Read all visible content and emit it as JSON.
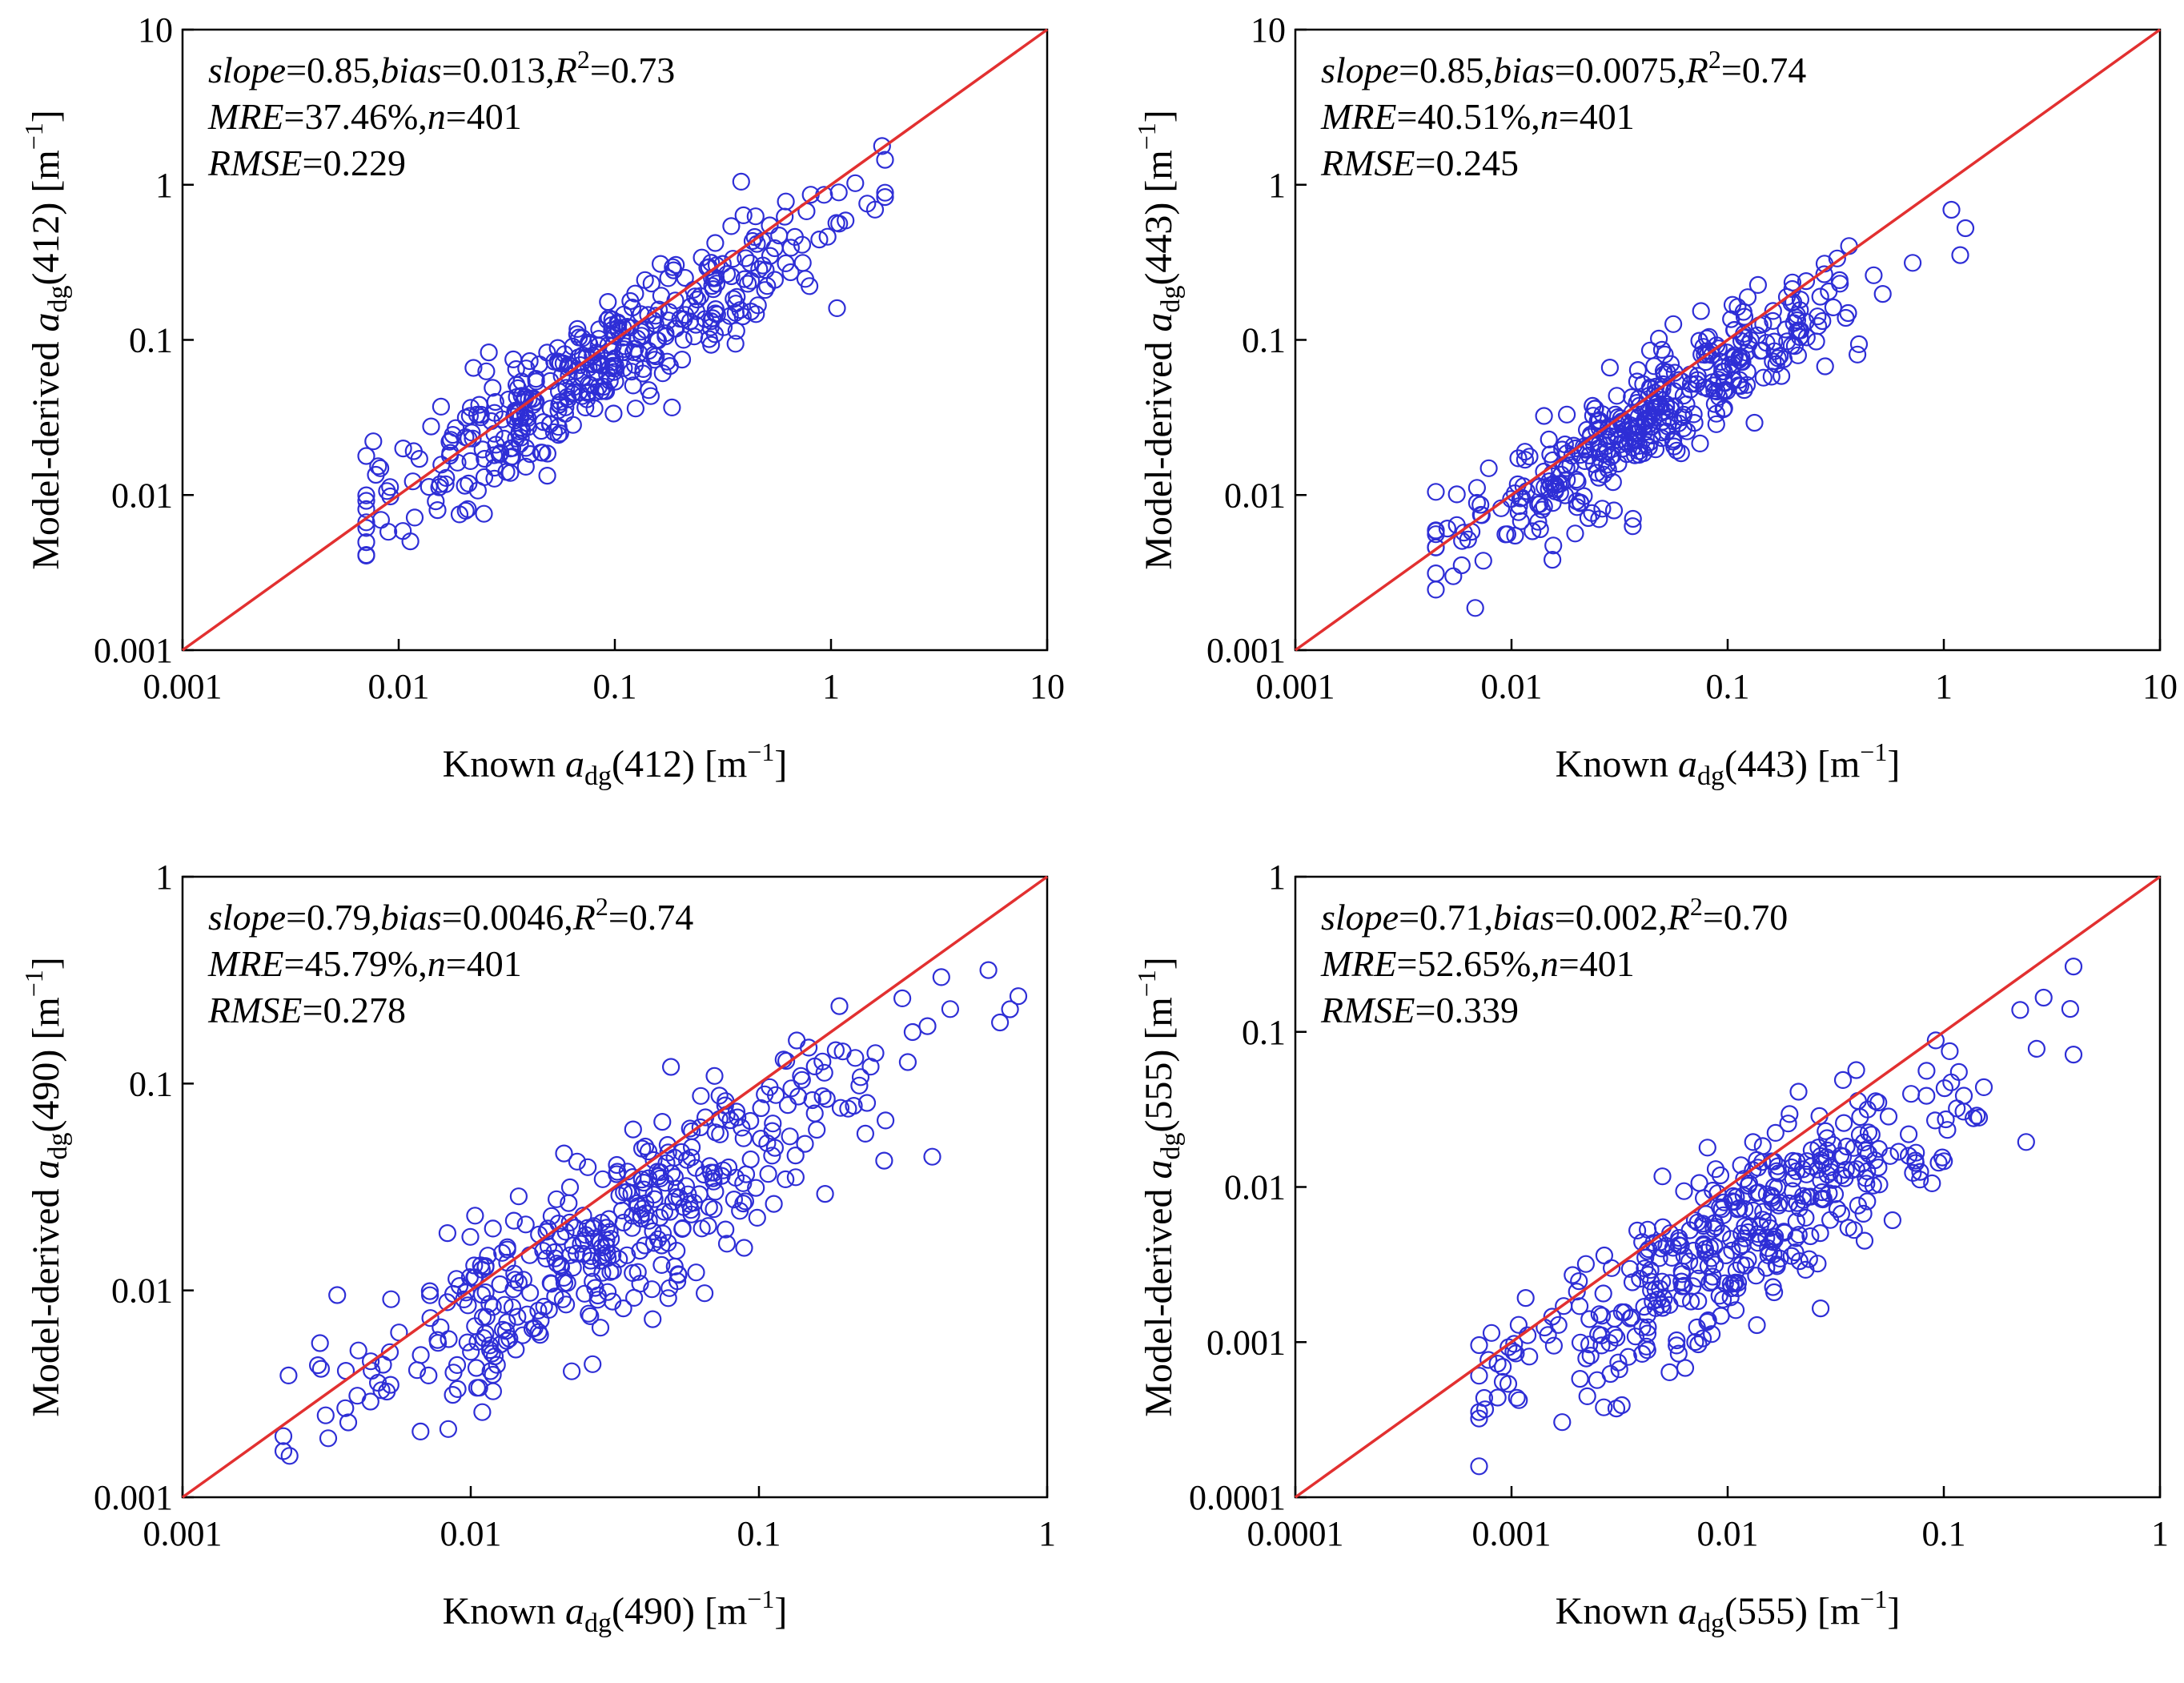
{
  "colors": {
    "points": "#2e2ed6",
    "identity_line": "#e23030",
    "axes": "#000000",
    "background": "#ffffff"
  },
  "chart_data": [
    {
      "type": "scatter",
      "band": "412",
      "scale": "log",
      "xlim": [
        0.001,
        10
      ],
      "ylim": [
        0.001,
        10
      ],
      "x_ticks": [
        "0.001",
        "0.01",
        "0.1",
        "1",
        "10"
      ],
      "y_ticks": [
        "0.001",
        "0.01",
        "0.1",
        "1",
        "10"
      ],
      "xlabel": {
        "pre": "Known ",
        "var": "a",
        "sub": "dg",
        "post": "(412) [m",
        "sup": "−1",
        "end": "]"
      },
      "ylabel": {
        "pre": "Model-derived ",
        "var": "a",
        "sub": "dg",
        "post": "(412) [m",
        "sup": "−1",
        "end": "]"
      },
      "stats": {
        "slope": "0.85",
        "bias": "0.013",
        "r2": "0.73",
        "mre": "37.46%",
        "n": "401",
        "rmse": "0.229"
      },
      "identity_line": true,
      "points": {
        "n": 401,
        "x_log10_mean": -1.1,
        "x_log10_sd": 0.55,
        "x_log10_min": -2.15,
        "x_log10_max": 0.25,
        "slope": 0.9,
        "offset": -0.1,
        "noise_log10_sd": 0.2,
        "seed": 412
      }
    },
    {
      "type": "scatter",
      "band": "443",
      "scale": "log",
      "xlim": [
        0.001,
        10
      ],
      "ylim": [
        0.001,
        10
      ],
      "x_ticks": [
        "0.001",
        "0.01",
        "0.1",
        "1",
        "10"
      ],
      "y_ticks": [
        "0.001",
        "0.01",
        "0.1",
        "1",
        "10"
      ],
      "xlabel": {
        "pre": "Known ",
        "var": "a",
        "sub": "dg",
        "post": "(443) [m",
        "sup": "−1",
        "end": "]"
      },
      "ylabel": {
        "pre": "Model-derived ",
        "var": "a",
        "sub": "dg",
        "post": "(443) [m",
        "sup": "−1",
        "end": "]"
      },
      "stats": {
        "slope": "0.85",
        "bias": "0.0075",
        "r2": "0.74",
        "mre": "40.51%",
        "n": "401",
        "rmse": "0.245"
      },
      "identity_line": true,
      "points": {
        "n": 401,
        "x_log10_mean": -1.35,
        "x_log10_sd": 0.52,
        "x_log10_min": -2.35,
        "x_log10_max": 0.1,
        "slope": 0.88,
        "offset": -0.15,
        "noise_log10_sd": 0.2,
        "seed": 443
      }
    },
    {
      "type": "scatter",
      "band": "490",
      "scale": "log",
      "xlim": [
        0.001,
        1
      ],
      "ylim": [
        0.001,
        1
      ],
      "x_ticks": [
        "0.001",
        "0.01",
        "0.1",
        "1"
      ],
      "y_ticks": [
        "0.001",
        "0.01",
        "0.1",
        "1"
      ],
      "xlabel": {
        "pre": "Known ",
        "var": "a",
        "sub": "dg",
        "post": "(490) [m",
        "sup": "−1",
        "end": "]"
      },
      "ylabel": {
        "pre": "Model-derived ",
        "var": "a",
        "sub": "dg",
        "post": "(490) [m",
        "sup": "−1",
        "end": "]"
      },
      "stats": {
        "slope": "0.79",
        "bias": "0.0046",
        "r2": "0.74",
        "mre": "45.79%",
        "n": "401",
        "rmse": "0.278"
      },
      "identity_line": true,
      "points": {
        "n": 401,
        "x_log10_mean": -1.5,
        "x_log10_sd": 0.5,
        "x_log10_min": -2.65,
        "x_log10_max": -0.1,
        "slope": 0.85,
        "offset": -0.2,
        "noise_log10_sd": 0.22,
        "seed": 490
      }
    },
    {
      "type": "scatter",
      "band": "555",
      "scale": "log",
      "xlim": [
        0.0001,
        1
      ],
      "ylim": [
        0.0001,
        1
      ],
      "x_ticks": [
        "0.0001",
        "0.001",
        "0.01",
        "0.1",
        "1"
      ],
      "y_ticks": [
        "0.0001",
        "0.001",
        "0.01",
        "0.1",
        "1"
      ],
      "xlabel": {
        "pre": "Known ",
        "var": "a",
        "sub": "dg",
        "post": "(555) [m",
        "sup": "−1",
        "end": "]"
      },
      "ylabel": {
        "pre": "Model-derived ",
        "var": "a",
        "sub": "dg",
        "post": "(555) [m",
        "sup": "−1",
        "end": "]"
      },
      "stats": {
        "slope": "0.71",
        "bias": "0.002",
        "r2": "0.70",
        "mre": "52.65%",
        "n": "401",
        "rmse": "0.339"
      },
      "identity_line": true,
      "points": {
        "n": 401,
        "x_log10_mean": -1.9,
        "x_log10_sd": 0.55,
        "x_log10_min": -3.15,
        "x_log10_max": -0.4,
        "slope": 0.8,
        "offset": -0.4,
        "noise_log10_sd": 0.28,
        "seed": 555
      }
    }
  ]
}
